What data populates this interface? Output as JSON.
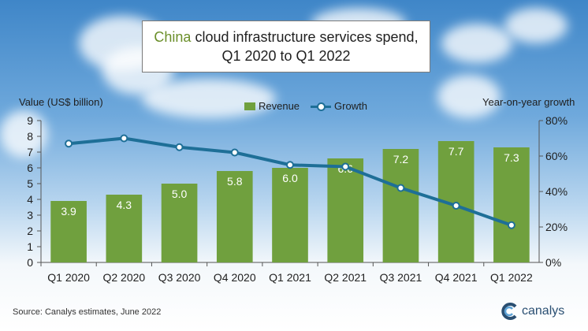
{
  "title": {
    "highlight": "China",
    "rest": " cloud infrastructure services spend,",
    "line2": "Q1 2020 to Q1 2022"
  },
  "axes": {
    "left_title": "Value (US$ billion)",
    "right_title": "Year-on-year growth"
  },
  "legend": {
    "revenue": "Revenue",
    "growth": "Growth"
  },
  "source": "Source: Canalys estimates, June 2022",
  "logo": {
    "name": "canalys"
  },
  "colors": {
    "bar": "#70a03e",
    "line": "#1e6f97",
    "highlight": "#6b8f2a"
  },
  "chart_data": {
    "type": "bar",
    "categories": [
      "Q1 2020",
      "Q2 2020",
      "Q3 2020",
      "Q4 2020",
      "Q1 2021",
      "Q2 2021",
      "Q3 2021",
      "Q4 2021",
      "Q1 2022"
    ],
    "series": [
      {
        "name": "Revenue",
        "type": "bar",
        "axis": "left",
        "values": [
          3.9,
          4.3,
          5.0,
          5.8,
          6.0,
          6.6,
          7.2,
          7.7,
          7.3
        ]
      },
      {
        "name": "Growth",
        "type": "line",
        "axis": "right",
        "values": [
          67,
          70,
          65,
          62,
          55,
          54,
          42,
          32,
          21
        ]
      }
    ],
    "data_labels": [
      "3.9",
      "4.3",
      "5.0",
      "5.8",
      "6.0",
      "6.6",
      "7.2",
      "7.7",
      "7.3"
    ],
    "left_axis": {
      "ylim": [
        0,
        9
      ],
      "ticks": [
        "0",
        "1",
        "2",
        "3",
        "4",
        "5",
        "6",
        "7",
        "8",
        "9"
      ]
    },
    "right_axis": {
      "ylim": [
        0,
        80
      ],
      "ticks": [
        "0%",
        "20%",
        "40%",
        "60%",
        "80%"
      ]
    },
    "grid": false,
    "legend_position": "top-center"
  }
}
